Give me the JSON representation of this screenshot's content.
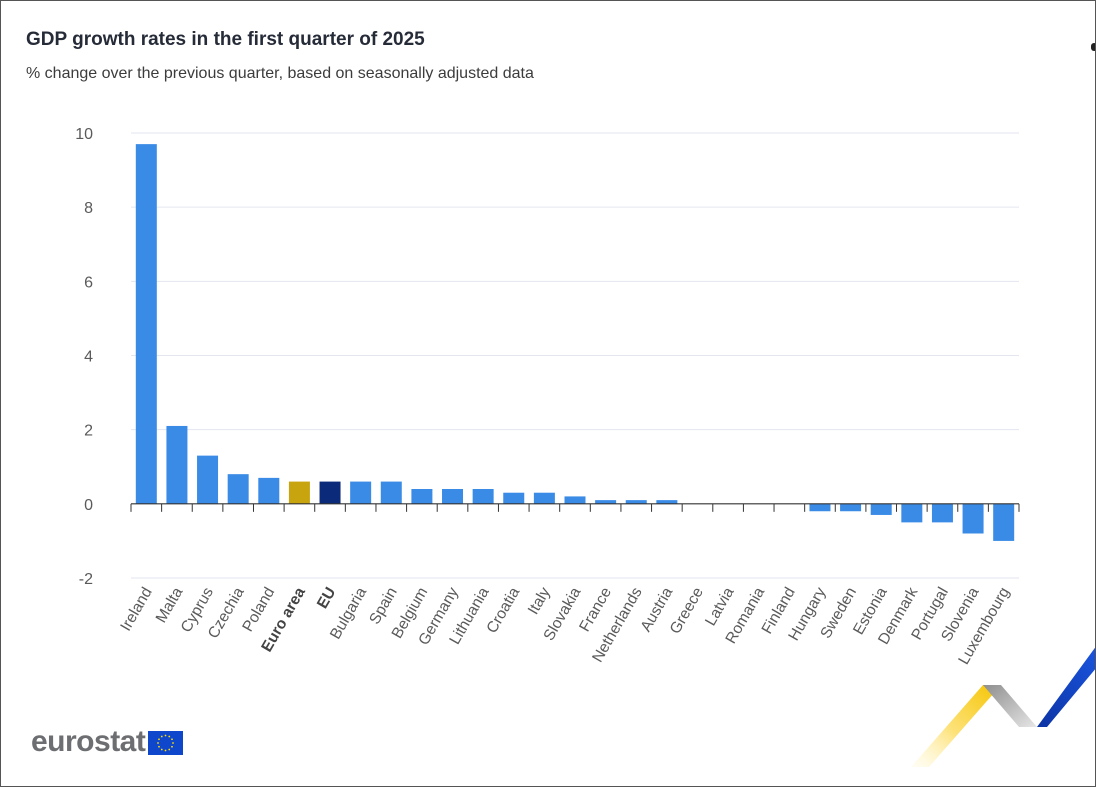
{
  "chart_data": {
    "type": "bar",
    "title": "GDP growth rates in the first quarter of 2025",
    "subtitle": "% change over the previous quarter, based on seasonally adjusted data",
    "categories": [
      "Ireland",
      "Malta",
      "Cyprus",
      "Czechia",
      "Poland",
      "Euro area",
      "EU",
      "Bulgaria",
      "Spain",
      "Belgium",
      "Germany",
      "Lithuania",
      "Croatia",
      "Italy",
      "Slovakia",
      "France",
      "Netherlands",
      "Austria",
      "Greece",
      "Latvia",
      "Romania",
      "Finland",
      "Hungary",
      "Sweden",
      "Estonia",
      "Denmark",
      "Portugal",
      "Slovenia",
      "Luxembourg"
    ],
    "values": [
      9.7,
      2.1,
      1.3,
      0.8,
      0.7,
      0.6,
      0.6,
      0.6,
      0.6,
      0.4,
      0.4,
      0.4,
      0.3,
      0.3,
      0.2,
      0.1,
      0.1,
      0.1,
      0.0,
      0.0,
      0.0,
      0.0,
      -0.2,
      -0.2,
      -0.3,
      -0.5,
      -0.5,
      -0.8,
      -1.0
    ],
    "bold_categories": [
      "Euro area",
      "EU"
    ],
    "ylim": [
      -2,
      10
    ],
    "yticks": [
      -2,
      0,
      2,
      4,
      6,
      8,
      10
    ],
    "grid": true,
    "colors": {
      "default": "#3a8be6",
      "Euro area": "#c8a40e",
      "EU": "#0b2a7a",
      "grid": "#e3e6ef",
      "axis": "#333333",
      "label": "#5a5a5a"
    }
  },
  "branding": {
    "logo_text": "eurostat",
    "flag_icon": "eu-flag-icon",
    "ribbon_icon": "eurostat-ribbon-icon",
    "flag_color": "#0e47cb",
    "star_color": "#ffdd00"
  }
}
